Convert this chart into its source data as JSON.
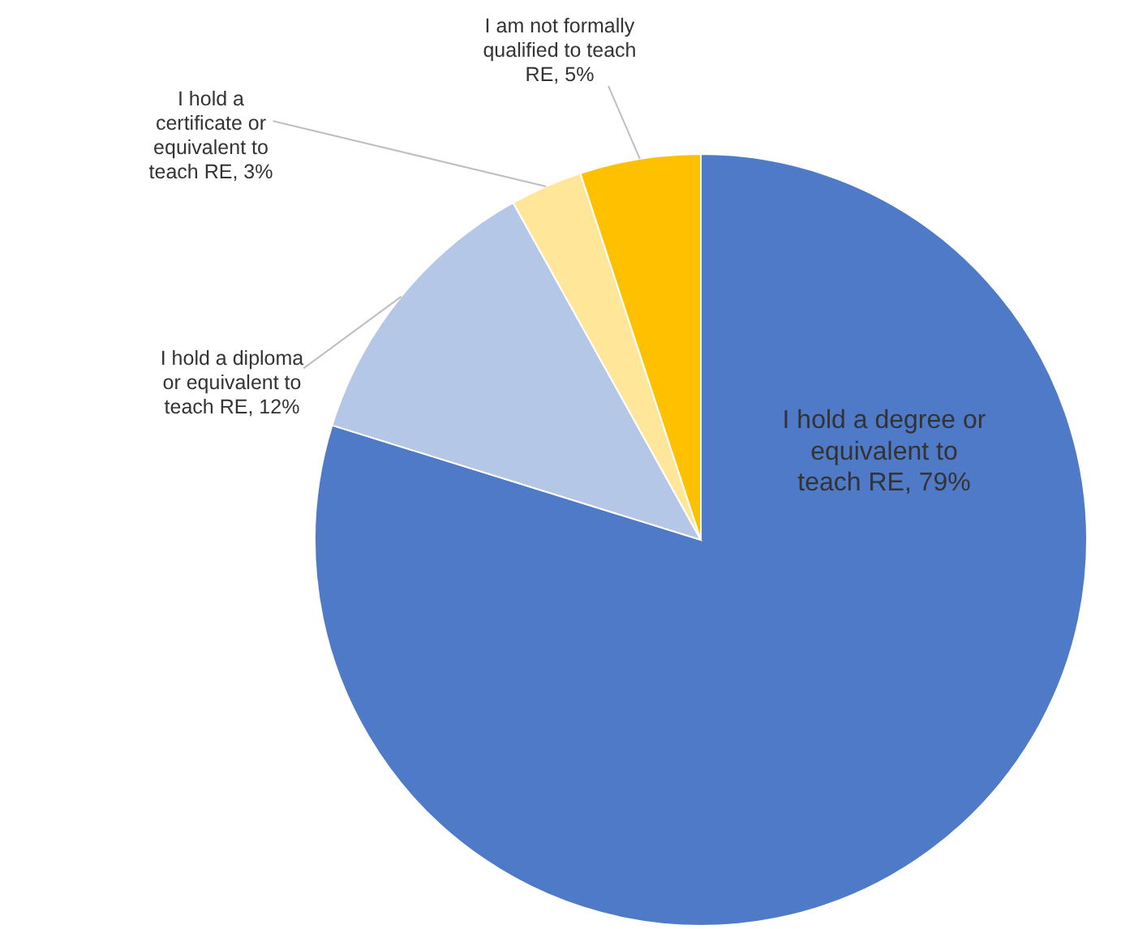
{
  "chart_data": {
    "type": "pie",
    "categories": [
      "I hold a degree or equivalent to teach RE",
      "I hold a diploma or equivalent to teach RE",
      "I hold a certificate or equivalent to teach RE",
      "I am not formally qualified to teach RE"
    ],
    "values": [
      79,
      12,
      3,
      5
    ],
    "value_labels": [
      ", 79%",
      ", 12%",
      ", 3%",
      ", 5%"
    ],
    "colors": [
      "#4f7ac7",
      "#b4c7e7",
      "#ffe699",
      "#ffc000"
    ],
    "data_labels": true
  }
}
